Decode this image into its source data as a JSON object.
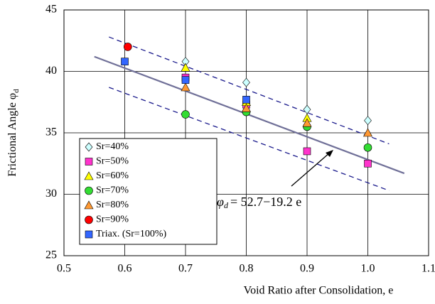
{
  "chart_data": {
    "type": "scatter",
    "x_label": "Void Ratio after Consolidation, e",
    "y_label": {
      "text": "Frictional Angle  φ",
      "subscript": "d"
    },
    "xlim": [
      0.5,
      1.1
    ],
    "xticks": [
      0.5,
      0.6,
      0.7,
      0.8,
      0.9,
      {
        "value": 1,
        "label": "1.0"
      },
      1.1
    ],
    "ylim": [
      25,
      45
    ],
    "yticks": [
      25,
      30,
      35,
      40,
      45
    ],
    "grid": true,
    "legend": "lower left",
    "series": [
      {
        "name": "Sr=40%",
        "color": "#ccffff",
        "marker": "diamond",
        "x": [
          0.7,
          0.8,
          0.9,
          1.0
        ],
        "values": [
          40.8,
          39.1,
          36.9,
          36.0
        ]
      },
      {
        "name": "Sr=50%",
        "color": "#ff33cc",
        "marker": "square",
        "x": [
          0.7,
          0.8,
          0.9,
          1.0
        ],
        "values": [
          39.5,
          37.3,
          33.5,
          32.5
        ]
      },
      {
        "name": "Sr=60%",
        "color": "#ffff00",
        "marker": "triangle",
        "x": [
          0.7,
          0.8,
          0.9
        ],
        "values": [
          40.3,
          37.5,
          36.2
        ]
      },
      {
        "name": "Sr=70%",
        "color": "#33dd33",
        "marker": "circle",
        "x": [
          0.7,
          0.8,
          0.9,
          1.0
        ],
        "values": [
          36.5,
          36.7,
          35.5,
          33.8
        ]
      },
      {
        "name": "Sr=80%",
        "color": "#ff9933",
        "marker": "triangle",
        "x": [
          0.7,
          0.8,
          0.9,
          1.0
        ],
        "values": [
          38.7,
          37.0,
          35.8,
          35.0
        ]
      },
      {
        "name": "Sr=90%",
        "color": "#ff0000",
        "marker": "circle",
        "x": [
          0.605
        ],
        "values": [
          42.0
        ]
      },
      {
        "name": "Triax. (Sr=100%)",
        "color": "#3366ff",
        "marker": "square",
        "x": [
          0.6,
          0.7,
          0.8
        ],
        "values": [
          40.8,
          39.3,
          37.7
        ]
      }
    ],
    "lines": [
      {
        "x": [
          0.55,
          1.06
        ],
        "y": [
          41.2,
          31.7
        ],
        "color": "#707098",
        "dashed": false
      },
      {
        "x": [
          0.574,
          1.035
        ],
        "y": [
          42.8,
          34.1
        ],
        "color": "#1a1a8c",
        "dashed": true
      },
      {
        "x": [
          0.574,
          1.035
        ],
        "y": [
          38.7,
          30.3
        ],
        "color": "#1a1a8c",
        "dashed": true
      }
    ],
    "annotation": {
      "symbol": "φ",
      "subscript": "d",
      "expression": "= 52.7−19.2 e"
    }
  }
}
